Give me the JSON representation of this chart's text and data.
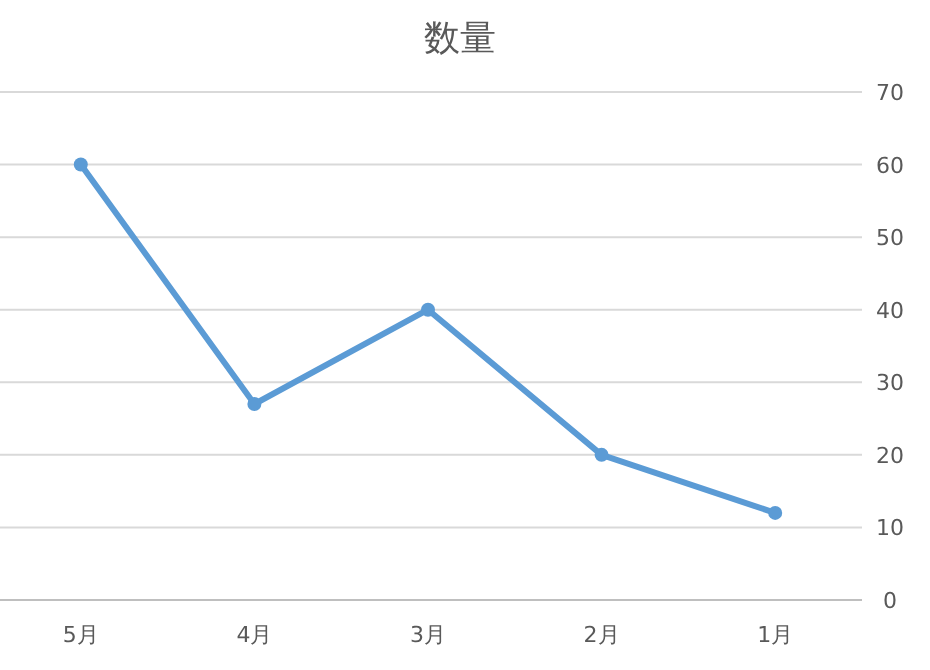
{
  "chart_data": {
    "type": "line",
    "title": "数量",
    "categories": [
      "5月",
      "4月",
      "3月",
      "2月",
      "1月"
    ],
    "series": [
      {
        "color": "#5b9bd5",
        "values": [
          60,
          27,
          40,
          20,
          12
        ]
      }
    ],
    "ylim": [
      0,
      70
    ],
    "yticks": [
      0,
      10,
      20,
      30,
      40,
      50,
      60,
      70
    ],
    "grid": "y",
    "marker": "circle"
  }
}
